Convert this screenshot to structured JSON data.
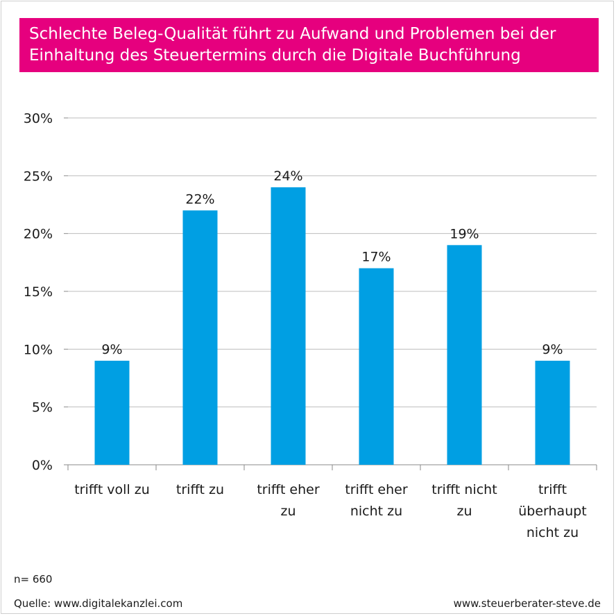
{
  "chart_data": {
    "type": "bar",
    "title": "Schlechte Beleg-Qualität führt zu Aufwand und Problemen bei der Einhaltung des Steuertermins durch die Digitale Buchführung",
    "title_lines": [
      "Schlechte Beleg-Qualität führt zu Aufwand und Problemen bei der",
      "Einhaltung des Steuertermins durch die Digitale Buchführung"
    ],
    "categories": [
      [
        "trifft voll zu"
      ],
      [
        "trifft zu"
      ],
      [
        "trifft eher",
        "zu"
      ],
      [
        "trifft eher",
        "nicht zu"
      ],
      [
        "trifft nicht",
        "zu"
      ],
      [
        "trifft",
        "überhaupt",
        "nicht zu"
      ]
    ],
    "values": [
      9,
      22,
      24,
      17,
      19,
      9
    ],
    "value_labels": [
      "9%",
      "22%",
      "24%",
      "17%",
      "19%",
      "9%"
    ],
    "yticks": [
      0,
      5,
      10,
      15,
      20,
      25,
      30
    ],
    "ytick_labels": [
      "0%",
      "5%",
      "10%",
      "15%",
      "20%",
      "25%",
      "30%"
    ],
    "ylim": [
      0,
      30
    ],
    "grid": true,
    "bar_color": "#009fe3",
    "title_bg": "#e6007e"
  },
  "footer": {
    "n": "n= 660",
    "source": "Quelle: www.digitalekanzlei.com",
    "website": "www.steuerberater-steve.de"
  }
}
